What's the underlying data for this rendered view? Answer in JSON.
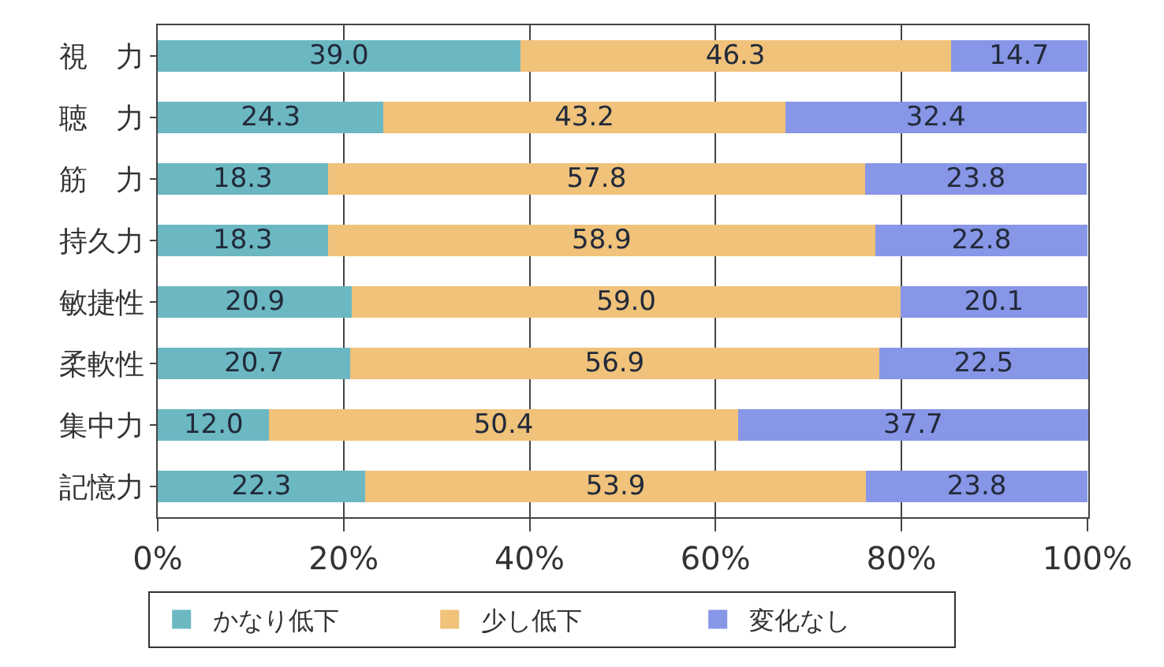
{
  "chart_data": {
    "type": "bar",
    "orientation": "horizontal",
    "stacked": true,
    "categories": [
      "視　力",
      "聴　力",
      "筋　力",
      "持久力",
      "敏捷性",
      "柔軟性",
      "集中力",
      "記憶力"
    ],
    "series": [
      {
        "name": "かなり低下",
        "color": "#6bb8c2",
        "values": [
          39.0,
          24.3,
          18.3,
          18.3,
          20.9,
          20.7,
          12.0,
          22.3
        ],
        "value_labels": [
          "39.0",
          "24.3",
          "18.3",
          "18.3",
          "20.9",
          "20.7",
          "12.0",
          "22.3"
        ]
      },
      {
        "name": "少し低下",
        "color": "#f0c27a",
        "values": [
          46.3,
          43.2,
          57.8,
          58.9,
          59.0,
          56.9,
          50.4,
          53.9
        ],
        "value_labels": [
          "46.3",
          "43.2",
          "57.8",
          "58.9",
          "59.0",
          "56.9",
          "50.4",
          "53.9"
        ]
      },
      {
        "name": "変化なし",
        "color": "#8796e6",
        "values": [
          14.7,
          32.4,
          23.8,
          22.8,
          20.1,
          22.5,
          37.7,
          23.8
        ],
        "value_labels": [
          "14.7",
          "32.4",
          "23.8",
          "22.8",
          "20.1",
          "22.5",
          "37.7",
          "23.8"
        ]
      }
    ],
    "xlim": [
      0,
      100.1
    ],
    "xticks": [
      {
        "value": 0,
        "label": "0%"
      },
      {
        "value": 20,
        "label": "20%"
      },
      {
        "value": 40,
        "label": "40%"
      },
      {
        "value": 60,
        "label": "60%"
      },
      {
        "value": 80,
        "label": "80%"
      },
      {
        "value": 100,
        "label": "100%"
      }
    ],
    "grid": "x",
    "legend": "bottom"
  }
}
